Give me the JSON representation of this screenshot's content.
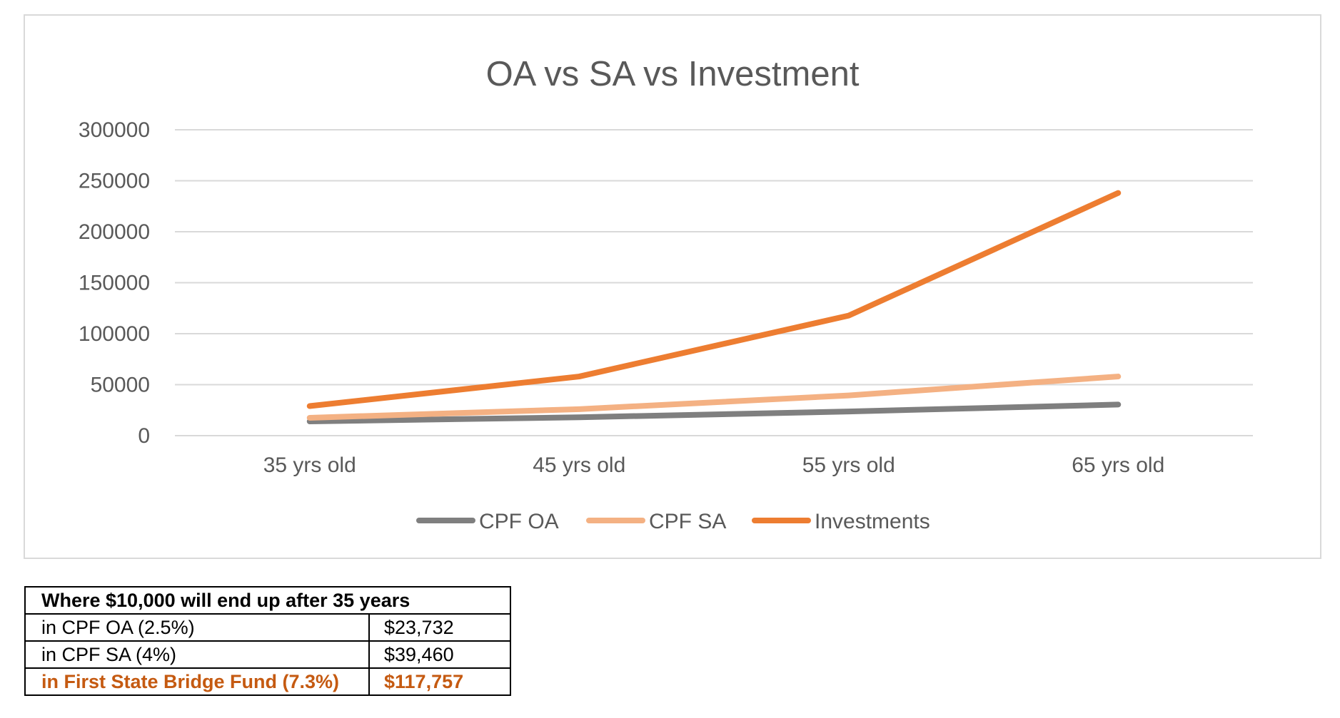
{
  "chart_data": {
    "type": "line",
    "title": "OA vs SA vs Investment",
    "categories": [
      "35 yrs old",
      "45 yrs old",
      "55 yrs old",
      "65 yrs old"
    ],
    "series": [
      {
        "name": "CPF OA",
        "color": "#7f7f7f",
        "values": [
          14000,
          18000,
          23700,
          30500
        ]
      },
      {
        "name": "CPF SA",
        "color": "#f4b183",
        "values": [
          17500,
          26000,
          39460,
          58000
        ]
      },
      {
        "name": "Investments",
        "color": "#ed7d31",
        "values": [
          29000,
          58000,
          117757,
          238000
        ]
      }
    ],
    "yticks": [
      "0",
      "50000",
      "100000",
      "150000",
      "200000",
      "250000",
      "300000"
    ],
    "ylim": [
      0,
      300000
    ],
    "grid": true,
    "legend": "bottom"
  },
  "table": {
    "title": "Where $10,000 will end up after 35 years",
    "rows": [
      {
        "label": "in CPF OA (2.5%)",
        "value": "$23,732",
        "highlight": false
      },
      {
        "label": "in CPF SA (4%)",
        "value": "$39,460",
        "highlight": false
      },
      {
        "label": "in First State Bridge Fund (7.3%)",
        "value": "$117,757",
        "highlight": true
      }
    ],
    "highlight_color": "#c55a11"
  }
}
